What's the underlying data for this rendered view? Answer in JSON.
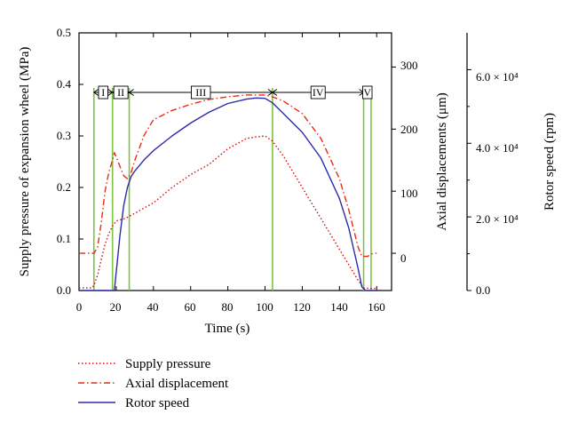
{
  "chart_data": {
    "type": "line",
    "xlabel": "Time (s)",
    "x_ticks": [
      "0",
      "20",
      "40",
      "60",
      "80",
      "100",
      "120",
      "140",
      "160"
    ],
    "xlim": [
      0,
      168
    ],
    "axes": {
      "pressure": {
        "label": "Supply pressure of expansion wheel (MPa)",
        "ylim": [
          0,
          0.5
        ],
        "ticks": [
          "0.0",
          "0.1",
          "0.2",
          "0.3",
          "0.4",
          "0.5"
        ]
      },
      "displacement": {
        "label": "Axial displacements (μm)",
        "ylim": [
          -60,
          355
        ],
        "ticks": [
          "0",
          "100",
          "200",
          "300"
        ]
      },
      "speed": {
        "label": "Rotor speed (rpm)",
        "ylim": [
          0,
          70000
        ],
        "ticks": [
          "0.0",
          "2.0 × 10⁴",
          "4.0 × 10⁴",
          "6.0 × 10⁴"
        ]
      }
    },
    "series": [
      {
        "name": "Supply pressure",
        "axis": "pressure",
        "color": "#cc1111",
        "style": "dotted",
        "x": [
          0,
          7,
          8,
          10,
          12,
          14,
          16,
          18,
          20,
          25,
          30,
          35,
          40,
          50,
          60,
          70,
          80,
          90,
          95,
          100,
          104,
          110,
          120,
          130,
          140,
          145,
          150,
          153,
          156,
          160
        ],
        "y": [
          0.005,
          0.005,
          0.01,
          0.03,
          0.06,
          0.09,
          0.11,
          0.125,
          0.135,
          0.14,
          0.15,
          0.16,
          0.17,
          0.2,
          0.225,
          0.245,
          0.275,
          0.295,
          0.298,
          0.3,
          0.29,
          0.26,
          0.2,
          0.14,
          0.08,
          0.05,
          0.02,
          0.005,
          0.004,
          0.004
        ]
      },
      {
        "name": "Axial displacement",
        "axis": "displacement",
        "color": "#e82a10",
        "style": "dashdot",
        "x": [
          0,
          8,
          10,
          12,
          14,
          16,
          18,
          19,
          20,
          22,
          24,
          26,
          28,
          30,
          35,
          40,
          50,
          60,
          70,
          80,
          90,
          100,
          104,
          110,
          120,
          130,
          140,
          145,
          150,
          152,
          155,
          158,
          160
        ],
        "y": [
          0,
          0,
          10,
          50,
          100,
          130,
          150,
          162,
          155,
          140,
          125,
          120,
          130,
          150,
          190,
          215,
          230,
          240,
          248,
          252,
          255,
          255,
          252,
          245,
          225,
          185,
          120,
          70,
          10,
          -5,
          -5,
          0,
          0
        ],
        "value_unit": "μm"
      },
      {
        "name": "Rotor speed",
        "axis": "speed",
        "color": "#2b2ba8",
        "style": "solid",
        "x": [
          0,
          19,
          20,
          22,
          24,
          26,
          28,
          30,
          35,
          40,
          50,
          60,
          70,
          80,
          90,
          95,
          100,
          104,
          110,
          120,
          130,
          140,
          145,
          150,
          152,
          154,
          160
        ],
        "y": [
          0,
          0,
          5000,
          15000,
          23000,
          28000,
          31000,
          32500,
          35500,
          38000,
          42000,
          45500,
          48500,
          50800,
          52000,
          52300,
          52200,
          51000,
          48000,
          43000,
          36000,
          25000,
          17000,
          6000,
          1000,
          0,
          0
        ]
      }
    ],
    "phases": {
      "boundaries_s": [
        8,
        18,
        27,
        104,
        153,
        157
      ],
      "labels": [
        "I",
        "II",
        "III",
        "IV",
        "V"
      ],
      "line_color": "#7dc242"
    },
    "legend": [
      "Supply pressure",
      "Axial displacement",
      "Rotor speed"
    ],
    "legend_placement": "below"
  }
}
